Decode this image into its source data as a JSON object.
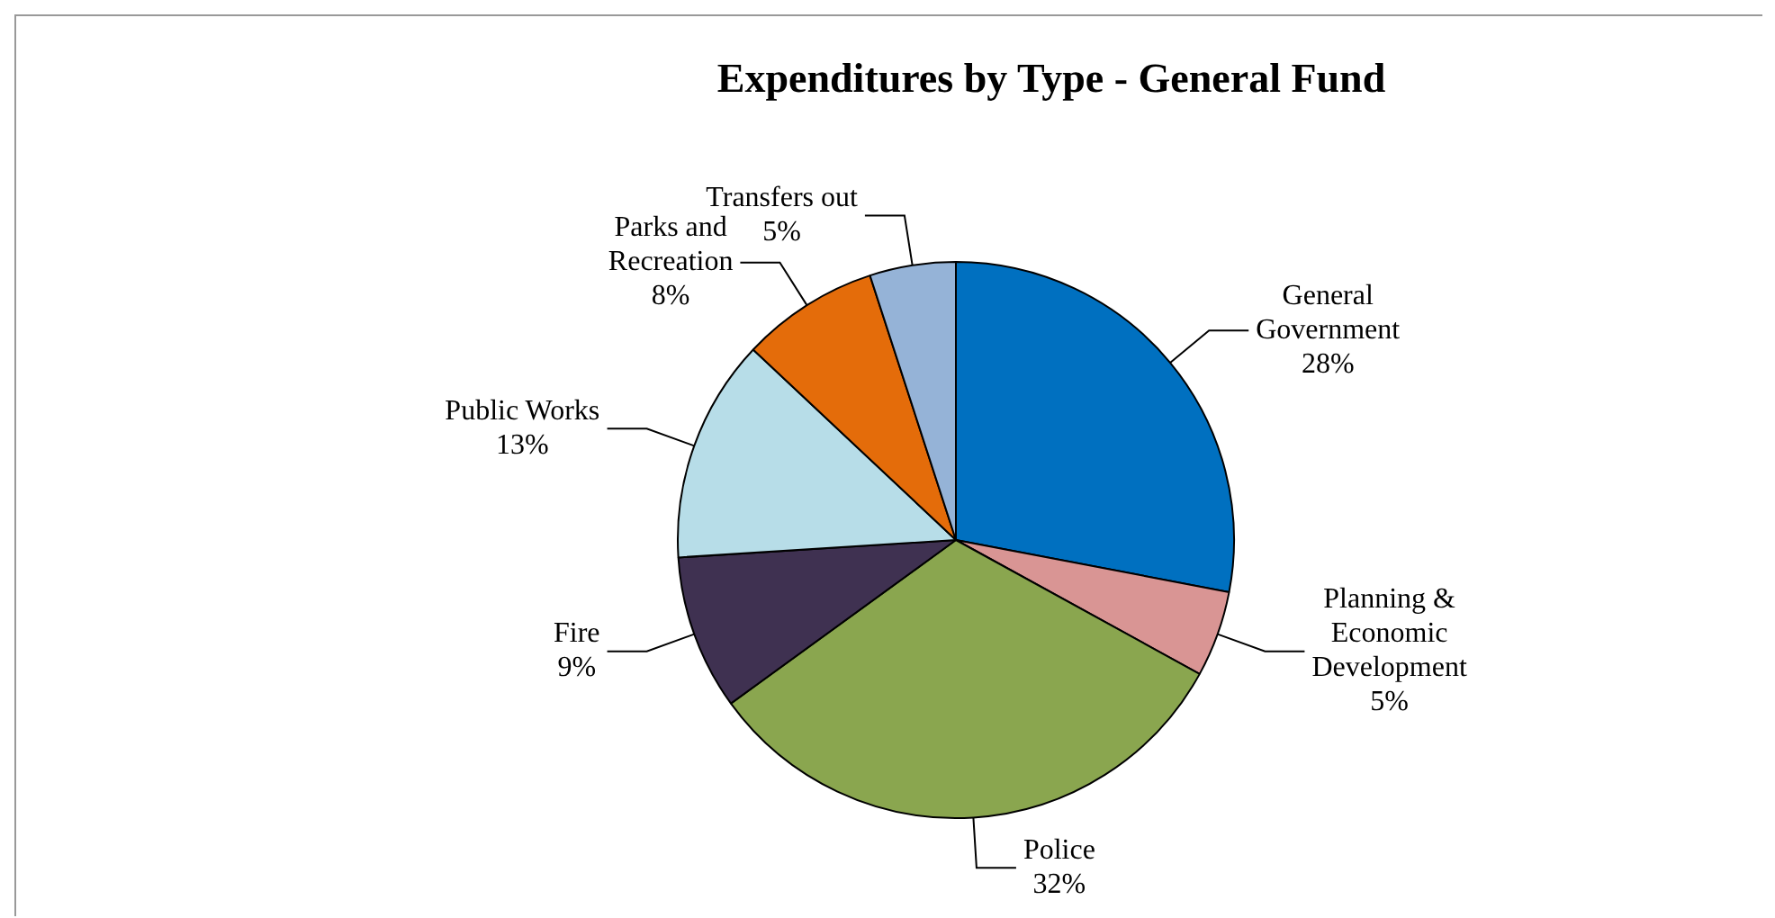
{
  "chart_data": {
    "type": "pie",
    "title": "Expenditures by Type - General Fund",
    "categories": [
      "General Government",
      "Planning & Economic Development",
      "Police",
      "Fire",
      "Public Works",
      "Parks and Recreation",
      "Transfers out"
    ],
    "values": [
      28,
      5,
      32,
      9,
      13,
      8,
      5
    ],
    "value_labels": [
      "28%",
      "5%",
      "32%",
      "9%",
      "13%",
      "8%",
      "5%"
    ],
    "colors": [
      "#0070c0",
      "#d99594",
      "#8aa64f",
      "#3f3151",
      "#b7dde8",
      "#e46c0a",
      "#95b3d7"
    ],
    "legend": false
  }
}
